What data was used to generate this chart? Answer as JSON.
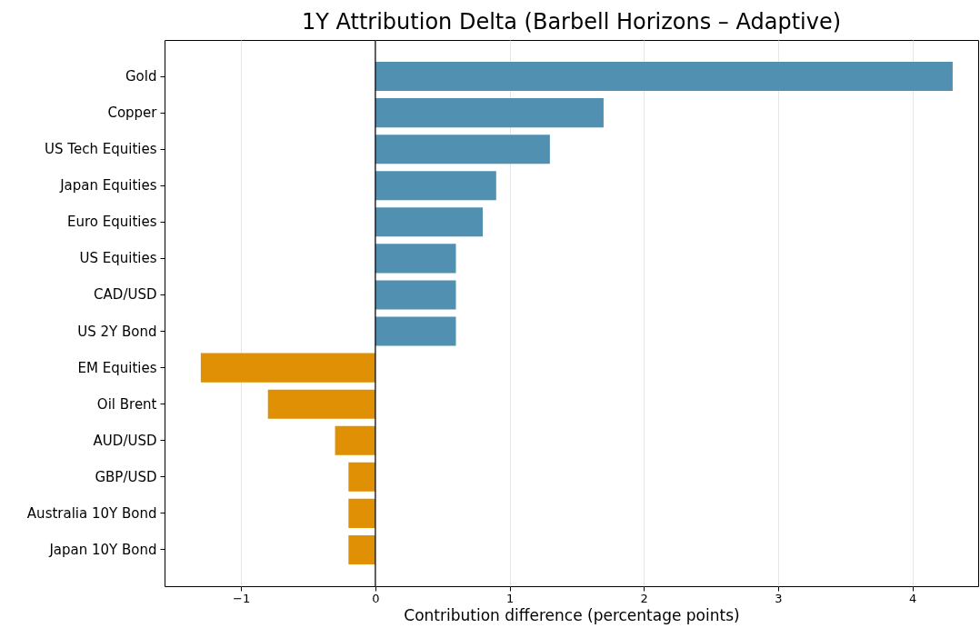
{
  "chart_data": {
    "type": "bar",
    "orientation": "horizontal",
    "title": "1Y Attribution Delta (Barbell Horizons – Adaptive)",
    "xlabel": "Contribution difference (percentage points)",
    "categories": [
      "Gold",
      "Copper",
      "US Tech Equities",
      "Japan Equities",
      "Euro Equities",
      "US Equities",
      "CAD/USD",
      "US 2Y Bond",
      "EM Equities",
      "Oil Brent",
      "AUD/USD",
      "GBP/USD",
      "Australia 10Y Bond",
      "Japan 10Y Bond"
    ],
    "values": [
      4.3,
      1.7,
      1.3,
      0.9,
      0.8,
      0.6,
      0.6,
      0.6,
      -1.3,
      -0.8,
      -0.3,
      -0.2,
      -0.2,
      -0.2
    ],
    "colors": [
      "#5190b0",
      "#5190b0",
      "#5190b0",
      "#5190b0",
      "#5190b0",
      "#5190b0",
      "#5190b0",
      "#5190b0",
      "#e09004",
      "#e09004",
      "#e09004",
      "#e09004",
      "#e09004",
      "#e09004"
    ],
    "xlim": [
      -1.57,
      4.49
    ],
    "xticks": [
      {
        "value": -1,
        "label": "−1"
      },
      0,
      1,
      2,
      3,
      4
    ],
    "grid": "x",
    "ref_lines": [
      {
        "axis": "x",
        "value": 0,
        "color": "#000000"
      }
    ]
  }
}
